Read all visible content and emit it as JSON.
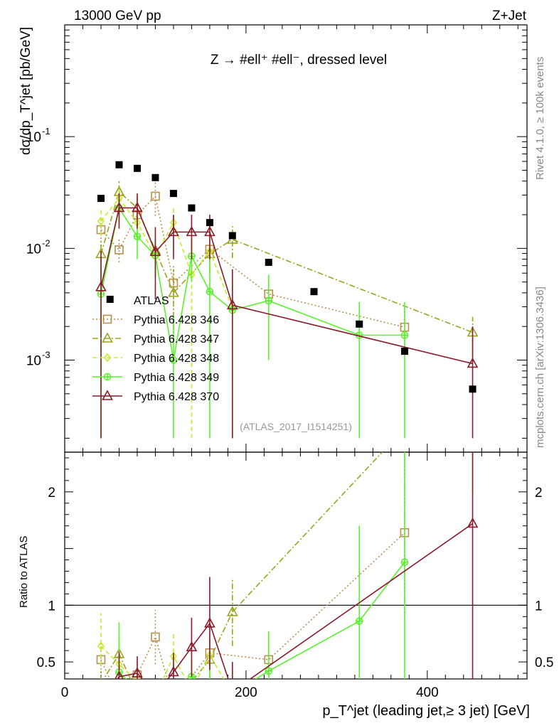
{
  "chart_data": {
    "type": "scatter",
    "header": {
      "left": "13000 GeV pp",
      "right": "Z+Jet",
      "right_vertical_top": "Rivet 4.1.0, ≥ 100k events",
      "right_vertical_bottom": "mcplots.cern.ch [arXiv:1306.3436]"
    },
    "title": "Z → #ell⁺ #ell⁻, dressed level",
    "watermark": "(ATLAS_2017_I1514251)",
    "ylabel": "dσ/dp_T^jet [pb/GeV]",
    "ratio_ylabel": "Ratio to ATLAS",
    "xlabel": "p_T^jet (leading jet,≥ 3 jet) [GeV]",
    "xlim": [
      0,
      510
    ],
    "ylim": [
      0.00015,
      1.0
    ],
    "ratio_ylim": [
      0.35,
      2.35
    ],
    "x_ticks": [
      0,
      200,
      400
    ],
    "x_tick_labels": [
      "0",
      "200",
      "400"
    ],
    "y_major_exponents": [
      -3,
      -2,
      -1
    ],
    "y_tick_labels": [
      {
        "base": "10",
        "exp": "-3"
      },
      {
        "base": "10",
        "exp": "-2"
      },
      {
        "base": "10",
        "exp": "-1"
      }
    ],
    "ratio_ticks": [
      0.5,
      1,
      2
    ],
    "ratio_tick_labels": [
      "0.5",
      "1",
      "2"
    ],
    "data": {
      "name": "ATLAS",
      "x": [
        40,
        50,
        60,
        80,
        100,
        120,
        140,
        160,
        185,
        225,
        275,
        325,
        375,
        450
      ],
      "y": [
        0.028,
        0.0035,
        0.056,
        0.052,
        0.043,
        0.031,
        0.023,
        0.017,
        0.013,
        0.0075,
        0.0041,
        0.0021,
        0.0012,
        0.00055
      ]
    },
    "series": [
      {
        "name": "Pythia 6.428 346",
        "color": "#b5914f",
        "dash": "2,3",
        "marker": "square",
        "x": [
          40,
          60,
          80,
          100,
          120,
          160,
          225,
          375
        ],
        "y": [
          0.0147,
          0.0097,
          0.02,
          0.0293,
          0.0049,
          0.0098,
          0.0039,
          0.00197
        ],
        "ylo": [
          0.0105,
          0.0075,
          0.0145,
          0.0195,
          0.0028,
          0.0078,
          0.0025,
          0.0011
        ],
        "yhi": [
          0.0189,
          0.0121,
          0.0255,
          0.039,
          0.007,
          0.0118,
          0.0053,
          0.0028
        ],
        "ratio": [
          0.52,
          0.17,
          0.385,
          0.72,
          0.16,
          0.58,
          0.52,
          1.64
        ],
        "ratio_lo": [
          0.37,
          0.13,
          0.28,
          0.48,
          0.09,
          0.46,
          0.33,
          0.9
        ],
        "ratio_hi": [
          0.67,
          0.22,
          0.49,
          0.96,
          0.23,
          0.7,
          0.71,
          2.35
        ]
      },
      {
        "name": "Pythia 6.428 347",
        "color": "#9aa41e",
        "dash": "8,3,2,3",
        "marker": "triangle",
        "x": [
          40,
          60,
          80,
          100,
          120,
          160,
          185,
          450
        ],
        "y": [
          0.0089,
          0.032,
          0.023,
          0.0096,
          0.004,
          0.0089,
          0.012,
          0.00177
        ],
        "ylo": [
          0.006,
          0.024,
          0.016,
          0.0062,
          0.0015,
          0.006,
          0.0082,
          0.0011
        ],
        "yhi": [
          0.0118,
          0.04,
          0.03,
          0.013,
          0.0065,
          0.0118,
          0.0158,
          0.00244
        ],
        "ratio": [
          0.31,
          0.57,
          0.22,
          0.22,
          0.13,
          0.52,
          0.94,
          3.2
        ],
        "ratio_lo": [
          0.2,
          0.43,
          0.16,
          0.14,
          0.05,
          0.35,
          0.64,
          2.0
        ],
        "ratio_hi": [
          0.42,
          0.71,
          0.28,
          0.3,
          0.21,
          0.69,
          1.24,
          4.4
        ]
      },
      {
        "name": "Pythia 6.428 348",
        "color": "#c0ee2a",
        "dash": "6,4",
        "marker": "diamond",
        "x": [
          40,
          60,
          80,
          100,
          120,
          140,
          160,
          185
        ],
        "y": [
          0.0175,
          0.028,
          0.017,
          0.0085,
          0.017,
          0.0058,
          0.0095,
          0.0029
        ],
        "ylo": [
          0.013,
          0.02,
          0.012,
          0.0055,
          0.01,
          0.0002,
          0.0065,
          0.0002
        ],
        "yhi": [
          0.022,
          0.036,
          0.022,
          0.0115,
          0.024,
          0.012,
          0.0125,
          0.0055
        ],
        "ratio": [
          0.64,
          0.48,
          0.33,
          0.2,
          0.55,
          0.25,
          0.56,
          0.22
        ],
        "ratio_lo": [
          0.47,
          0.35,
          0.24,
          0.13,
          0.33,
          0.01,
          0.38,
          0.01
        ],
        "ratio_hi": [
          0.93,
          0.64,
          0.43,
          0.27,
          0.77,
          0.52,
          0.74,
          0.42
        ]
      },
      {
        "name": "Pythia 6.428 349",
        "color": "#59f22d",
        "dash": "",
        "marker": "plus-circle",
        "x": [
          40,
          60,
          80,
          100,
          120,
          140,
          160,
          185,
          225,
          325,
          375
        ],
        "y": [
          0.0039,
          0.023,
          0.0128,
          0.0086,
          0.001,
          0.0085,
          0.0041,
          0.0028,
          0.0034,
          0.00167,
          0.00167
        ],
        "ylo": [
          0.0002,
          0.017,
          0.008,
          0.0055,
          0.0002,
          0.005,
          0.0002,
          0.0002,
          0.001,
          0.0002,
          0.0002
        ],
        "yhi": [
          0.0075,
          0.03,
          0.0176,
          0.012,
          0.0025,
          0.012,
          0.0085,
          0.0055,
          0.0058,
          0.0033,
          0.0033
        ],
        "ratio": [
          0.14,
          0.41,
          0.25,
          0.2,
          0.03,
          0.37,
          0.24,
          0.22,
          0.42,
          0.86,
          1.38
        ],
        "ratio_lo": [
          0.01,
          0.3,
          0.15,
          0.13,
          0.01,
          0.22,
          0.01,
          0.01,
          0.13,
          0.01,
          0.01
        ],
        "ratio_hi": [
          0.27,
          0.85,
          0.34,
          0.28,
          0.08,
          0.52,
          0.5,
          0.42,
          0.77,
          1.7,
          2.35
        ]
      },
      {
        "name": "Pythia 6.428 370",
        "color": "#8b1a2a",
        "dash": "",
        "marker": "triangle",
        "x": [
          40,
          60,
          80,
          100,
          120,
          140,
          160,
          185,
          450
        ],
        "y": [
          0.0045,
          0.023,
          0.023,
          0.0093,
          0.014,
          0.014,
          0.014,
          0.0031,
          0.00093
        ],
        "ylo": [
          0.0002,
          0.015,
          0.015,
          0.0035,
          0.008,
          0.008,
          0.008,
          0.0002,
          0.0002
        ],
        "yhi": [
          0.0095,
          0.031,
          0.031,
          0.0155,
          0.02,
          0.02,
          0.02,
          0.0065,
          0.002
        ],
        "ratio": [
          0.16,
          0.37,
          0.4,
          0.22,
          0.41,
          0.63,
          0.84,
          0.24,
          1.72
        ],
        "ratio_lo": [
          0.01,
          0.23,
          0.25,
          0.08,
          0.24,
          0.37,
          0.43,
          0.01,
          0.01
        ],
        "ratio_hi": [
          0.34,
          0.59,
          0.55,
          0.36,
          0.58,
          0.89,
          1.25,
          0.5,
          2.35
        ]
      }
    ]
  }
}
